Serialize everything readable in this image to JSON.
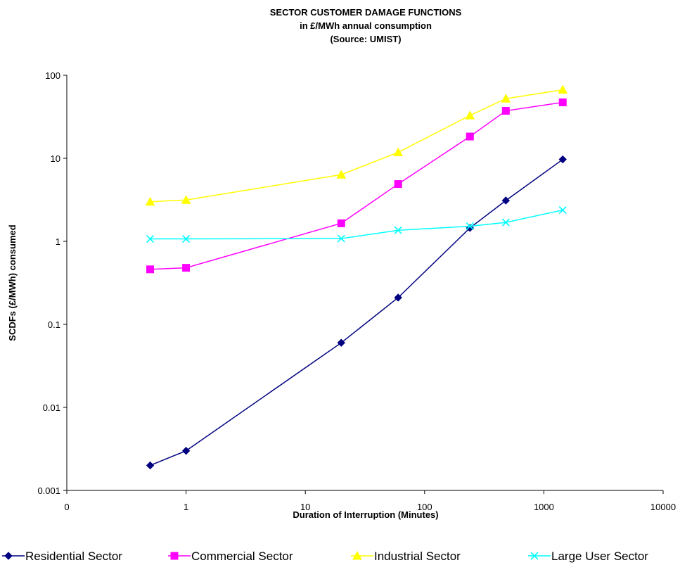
{
  "chart_data": {
    "type": "line",
    "title_lines": [
      "SECTOR CUSTOMER DAMAGE FUNCTIONS",
      "in £/MWh annual consumption",
      "(Source: UMIST)"
    ],
    "xlabel": "Duration of Interruption (Minutes)",
    "ylabel": "SCDFs (£/MWh) consumed",
    "x_scale": "log",
    "y_scale": "log",
    "xlim": [
      0.1,
      10000
    ],
    "ylim": [
      0.001,
      100
    ],
    "x_ticks": [
      {
        "value": 0.1,
        "label": "0"
      },
      {
        "value": 1,
        "label": "1"
      },
      {
        "value": 10,
        "label": "10"
      },
      {
        "value": 100,
        "label": "100"
      },
      {
        "value": 1000,
        "label": "1000"
      },
      {
        "value": 10000,
        "label": "10000"
      }
    ],
    "y_ticks": [
      {
        "value": 0.001,
        "label": "0.001"
      },
      {
        "value": 0.01,
        "label": "0.01"
      },
      {
        "value": 0.1,
        "label": "0.1"
      },
      {
        "value": 1,
        "label": "1"
      },
      {
        "value": 10,
        "label": "10"
      },
      {
        "value": 100,
        "label": "100"
      }
    ],
    "grid": false,
    "legend_position": "bottom",
    "x": [
      0.5,
      1,
      20,
      60,
      240,
      480,
      1440
    ],
    "series": [
      {
        "name": "Residential Sector",
        "values": [
          0.002,
          0.003,
          0.06,
          0.21,
          1.45,
          3.1,
          9.7
        ],
        "color": "#000080",
        "marker": "diamond"
      },
      {
        "name": "Commercial Sector",
        "values": [
          0.46,
          0.48,
          1.65,
          4.9,
          18.3,
          37.3,
          47.2
        ],
        "color": "#ff00ff",
        "marker": "square"
      },
      {
        "name": "Industrial Sector",
        "values": [
          3.0,
          3.15,
          6.35,
          11.8,
          32.8,
          52.3,
          66.9
        ],
        "color": "#ffff00",
        "marker": "triangle"
      },
      {
        "name": "Large User Sector",
        "values": [
          1.07,
          1.07,
          1.08,
          1.36,
          1.52,
          1.69,
          2.38
        ],
        "color": "#00ffff",
        "marker": "x"
      }
    ]
  }
}
